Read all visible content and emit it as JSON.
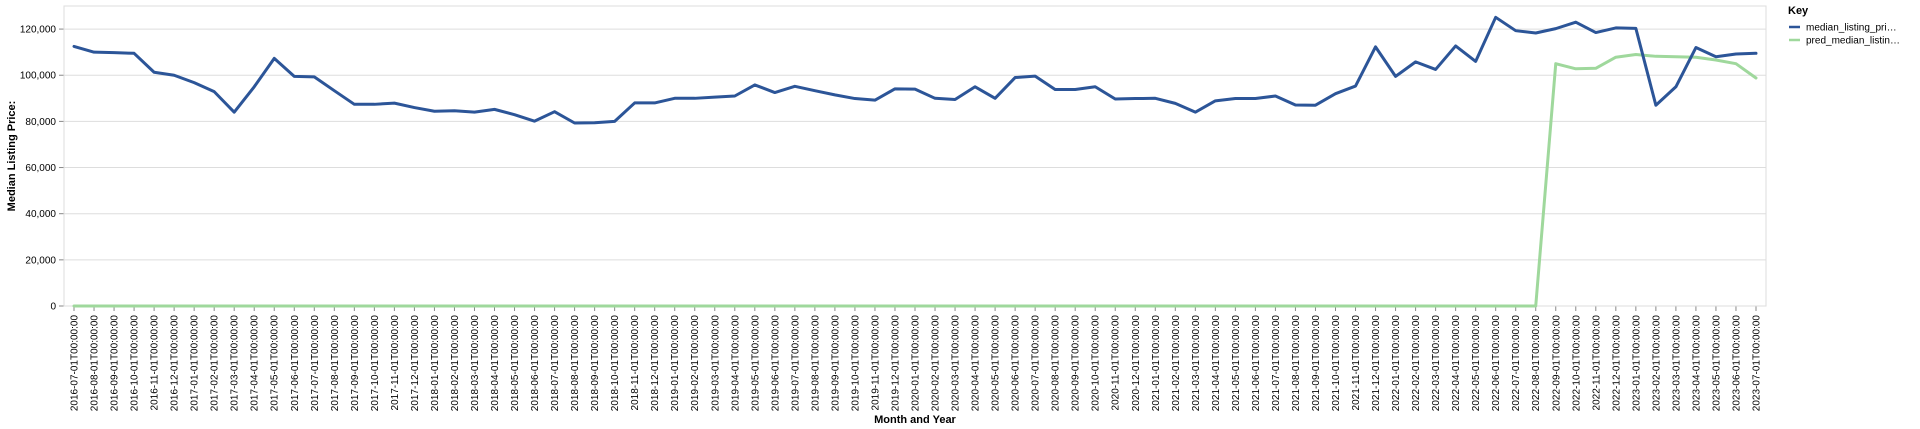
{
  "chart_data": {
    "type": "line",
    "xlabel": "Month and Year",
    "ylabel": "Median Listing Price:",
    "ylim": [
      0,
      130000
    ],
    "yticks": [
      0,
      20000,
      40000,
      60000,
      80000,
      100000,
      120000
    ],
    "ytick_labels": [
      "0",
      "20,000",
      "40,000",
      "60,000",
      "80,000",
      "100,000",
      "120,000"
    ],
    "grid": true,
    "legend": {
      "title": "Key",
      "position": "top-right"
    },
    "x": [
      "2016-07-01T00:00:00",
      "2016-08-01T00:00:00",
      "2016-09-01T00:00:00",
      "2016-10-01T00:00:00",
      "2016-11-01T00:00:00",
      "2016-12-01T00:00:00",
      "2017-01-01T00:00:00",
      "2017-02-01T00:00:00",
      "2017-03-01T00:00:00",
      "2017-04-01T00:00:00",
      "2017-05-01T00:00:00",
      "2017-06-01T00:00:00",
      "2017-07-01T00:00:00",
      "2017-08-01T00:00:00",
      "2017-09-01T00:00:00",
      "2017-10-01T00:00:00",
      "2017-11-01T00:00:00",
      "2017-12-01T00:00:00",
      "2018-01-01T00:00:00",
      "2018-02-01T00:00:00",
      "2018-03-01T00:00:00",
      "2018-04-01T00:00:00",
      "2018-05-01T00:00:00",
      "2018-06-01T00:00:00",
      "2018-07-01T00:00:00",
      "2018-08-01T00:00:00",
      "2018-09-01T00:00:00",
      "2018-10-01T00:00:00",
      "2018-11-01T00:00:00",
      "2018-12-01T00:00:00",
      "2019-01-01T00:00:00",
      "2019-02-01T00:00:00",
      "2019-03-01T00:00:00",
      "2019-04-01T00:00:00",
      "2019-05-01T00:00:00",
      "2019-06-01T00:00:00",
      "2019-07-01T00:00:00",
      "2019-08-01T00:00:00",
      "2019-09-01T00:00:00",
      "2019-10-01T00:00:00",
      "2019-11-01T00:00:00",
      "2019-12-01T00:00:00",
      "2020-01-01T00:00:00",
      "2020-02-01T00:00:00",
      "2020-03-01T00:00:00",
      "2020-04-01T00:00:00",
      "2020-05-01T00:00:00",
      "2020-06-01T00:00:00",
      "2020-07-01T00:00:00",
      "2020-08-01T00:00:00",
      "2020-09-01T00:00:00",
      "2020-10-01T00:00:00",
      "2020-11-01T00:00:00",
      "2020-12-01T00:00:00",
      "2021-01-01T00:00:00",
      "2021-02-01T00:00:00",
      "2021-03-01T00:00:00",
      "2021-04-01T00:00:00",
      "2021-05-01T00:00:00",
      "2021-06-01T00:00:00",
      "2021-07-01T00:00:00",
      "2021-08-01T00:00:00",
      "2021-09-01T00:00:00",
      "2021-10-01T00:00:00",
      "2021-11-01T00:00:00",
      "2021-12-01T00:00:00",
      "2022-01-01T00:00:00",
      "2022-02-01T00:00:00",
      "2022-03-01T00:00:00",
      "2022-04-01T00:00:00",
      "2022-05-01T00:00:00",
      "2022-06-01T00:00:00",
      "2022-07-01T00:00:00",
      "2022-08-01T00:00:00",
      "2022-09-01T00:00:00",
      "2022-10-01T00:00:00",
      "2022-11-01T00:00:00",
      "2022-12-01T00:00:00",
      "2023-01-01T00:00:00",
      "2023-02-01T00:00:00",
      "2023-03-01T00:00:00",
      "2023-04-01T00:00:00",
      "2023-05-01T00:00:00",
      "2023-06-01T00:00:00",
      "2023-07-01T00:00:00"
    ],
    "series": [
      {
        "name": "median_listing_pri…",
        "color": "#2c5598",
        "values": [
          112500,
          110000,
          109800,
          109500,
          101300,
          100000,
          96800,
          92900,
          84000,
          95000,
          107300,
          99500,
          99300,
          93300,
          87400,
          87400,
          87900,
          86000,
          84400,
          84600,
          84000,
          85200,
          82900,
          80100,
          84200,
          79300,
          79400,
          80000,
          88000,
          88000,
          90000,
          90000,
          90500,
          91000,
          95800,
          92500,
          95200,
          93300,
          91500,
          89900,
          89200,
          94100,
          94000,
          90000,
          89500,
          95000,
          90000,
          99000,
          99600,
          93800,
          93800,
          95000,
          89700,
          89900,
          90000,
          87800,
          84000,
          88900,
          89900,
          89900,
          91000,
          87100,
          87000,
          92000,
          95300,
          112300,
          99500,
          105800,
          102500,
          112700,
          106000,
          125100,
          119300,
          118300,
          120200,
          123000,
          118500,
          120500,
          120300,
          87000,
          95000,
          112000,
          108000,
          109200,
          109500
        ]
      },
      {
        "name": "pred_median_listin…",
        "color": "#9fd89c",
        "values": [
          0,
          0,
          0,
          0,
          0,
          0,
          0,
          0,
          0,
          0,
          0,
          0,
          0,
          0,
          0,
          0,
          0,
          0,
          0,
          0,
          0,
          0,
          0,
          0,
          0,
          0,
          0,
          0,
          0,
          0,
          0,
          0,
          0,
          0,
          0,
          0,
          0,
          0,
          0,
          0,
          0,
          0,
          0,
          0,
          0,
          0,
          0,
          0,
          0,
          0,
          0,
          0,
          0,
          0,
          0,
          0,
          0,
          0,
          0,
          0,
          0,
          0,
          0,
          0,
          0,
          0,
          0,
          0,
          0,
          0,
          0,
          0,
          0,
          0,
          105000,
          102800,
          103000,
          107800,
          109000,
          108200,
          108000,
          107800,
          106600,
          105000,
          98800
        ]
      }
    ]
  }
}
